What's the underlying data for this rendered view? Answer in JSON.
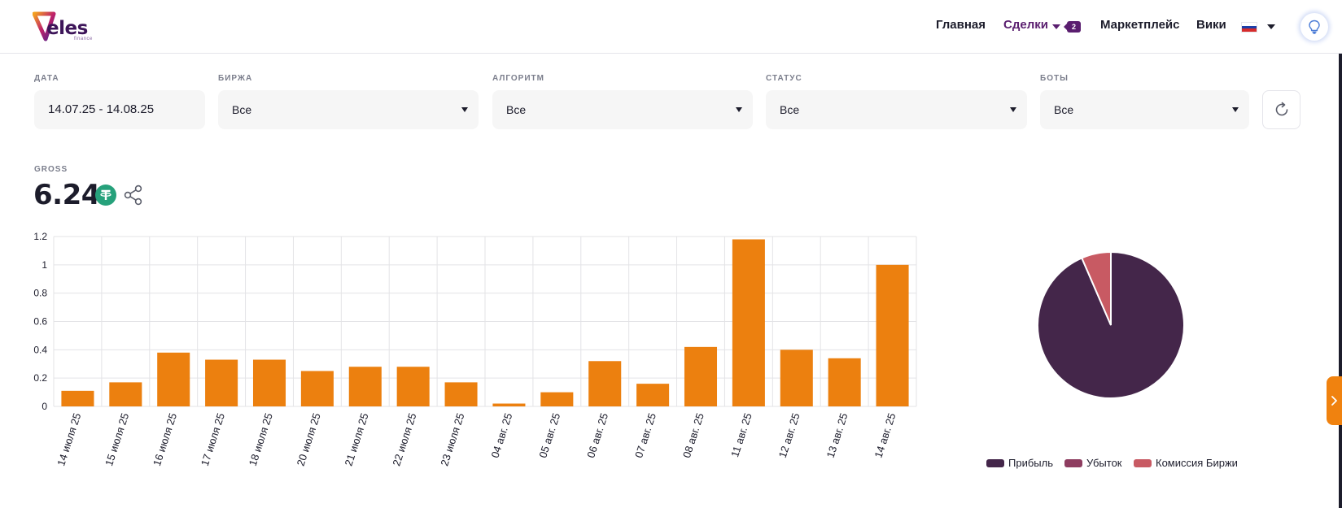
{
  "header": {
    "logo": {
      "word": "eles",
      "sub": "finance"
    },
    "nav": {
      "home": "Главная",
      "deals": "Сделки",
      "deals_badge": "2",
      "marketplace": "Маркетплейс",
      "wiki": "Вики"
    },
    "language_flag": "ru",
    "colors": {
      "brand": "#5a1e6f"
    }
  },
  "filters": {
    "date": {
      "label": "ДАТА",
      "value": "14.07.25 - 14.08.25"
    },
    "exchange": {
      "label": "БИРЖА",
      "value": "Все"
    },
    "algorithm": {
      "label": "АЛГОРИТМ",
      "value": "Все"
    },
    "status": {
      "label": "СТАТУС",
      "value": "Все"
    },
    "bots": {
      "label": "БОТЫ",
      "value": "Все"
    }
  },
  "gross": {
    "label": "GROSS",
    "value": "6.24",
    "currency_icon": "tether-icon"
  },
  "chart_data": [
    {
      "type": "bar",
      "categories": [
        "14 июля 25",
        "15 июля 25",
        "16 июля 25",
        "17 июля 25",
        "18 июля 25",
        "20 июля 25",
        "21 июля 25",
        "22 июля 25",
        "23 июля 25",
        "04 авг. 25",
        "05 авг. 25",
        "06 авг. 25",
        "07 авг. 25",
        "08 авг. 25",
        "11 авг. 25",
        "12 авг. 25",
        "13 авг. 25",
        "14 авг. 25"
      ],
      "values": [
        0.11,
        0.17,
        0.38,
        0.33,
        0.33,
        0.25,
        0.28,
        0.28,
        0.17,
        0.02,
        0.1,
        0.32,
        0.16,
        0.42,
        1.18,
        0.4,
        0.34,
        1.0
      ],
      "yticks": [
        "0",
        "0.2",
        "0.4",
        "0.6",
        "0.8",
        "1",
        "1.2"
      ],
      "ylim": [
        0,
        1.2
      ],
      "grid": true,
      "color": "#ec800f"
    },
    {
      "type": "pie",
      "slices": [
        {
          "name": "Прибыль",
          "value": 93.5,
          "color": "#44264a"
        },
        {
          "name": "Убыток",
          "value": 0,
          "color": "#8e3d60"
        },
        {
          "name": "Комиссия Биржи",
          "value": 6.5,
          "color": "#c85a63"
        }
      ],
      "legend": "bottom"
    }
  ]
}
